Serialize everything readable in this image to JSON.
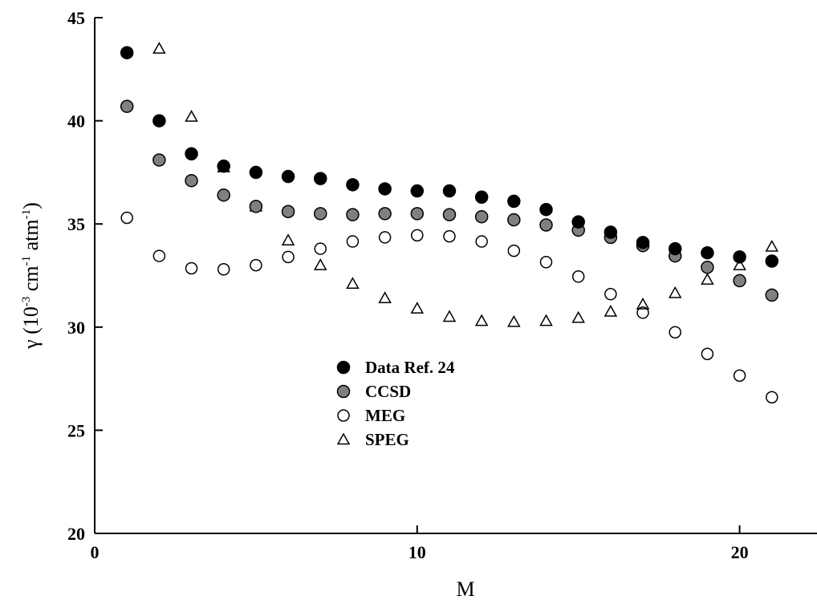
{
  "chart_data": {
    "type": "scatter",
    "title": "",
    "xlabel": "M",
    "ylabel": {
      "base": "γ (10",
      "exp1": "-3",
      "mid1": " cm",
      "exp2": "-1",
      "mid2": " atm",
      "exp3": "-1",
      "end": ")"
    },
    "xlim": [
      0,
      22.4
    ],
    "ylim": [
      20,
      45
    ],
    "xticks": [
      0,
      10,
      20
    ],
    "xtick_labels": [
      "0",
      "10",
      "20"
    ],
    "yticks": [
      20,
      25,
      30,
      35,
      40,
      45
    ],
    "ytick_labels": [
      "20",
      "25",
      "30",
      "35",
      "40",
      "45"
    ],
    "grid": false,
    "legend_position": "center-left",
    "x": [
      1,
      2,
      3,
      4,
      5,
      6,
      7,
      8,
      9,
      10,
      11,
      12,
      13,
      14,
      15,
      16,
      17,
      18,
      19,
      20,
      21
    ],
    "series": [
      {
        "name": "Data Ref. 24",
        "marker": "circle-filled-black",
        "values": [
          43.3,
          40.0,
          38.4,
          37.8,
          37.5,
          37.3,
          37.2,
          36.9,
          36.7,
          36.6,
          36.6,
          36.3,
          36.1,
          35.7,
          35.1,
          34.6,
          34.1,
          33.8,
          33.6,
          33.4,
          33.2
        ]
      },
      {
        "name": "CCSD",
        "marker": "circle-filled-gray",
        "values": [
          40.7,
          38.1,
          37.1,
          36.4,
          35.85,
          35.6,
          35.5,
          35.45,
          35.5,
          35.5,
          35.45,
          35.35,
          35.2,
          34.95,
          34.7,
          34.35,
          33.95,
          33.45,
          32.9,
          32.25,
          31.55
        ]
      },
      {
        "name": "MEG",
        "marker": "circle-open",
        "values": [
          35.3,
          33.45,
          32.85,
          32.8,
          33.0,
          33.4,
          33.8,
          34.15,
          34.35,
          34.45,
          34.4,
          34.15,
          33.7,
          33.15,
          32.45,
          31.6,
          30.7,
          29.75,
          28.7,
          27.65,
          26.6
        ]
      },
      {
        "name": "SPEG",
        "marker": "triangle-open",
        "values": [
          null,
          43.5,
          40.2,
          37.75,
          35.85,
          34.2,
          33.0,
          32.1,
          31.4,
          30.9,
          30.5,
          30.3,
          30.25,
          30.3,
          30.45,
          30.75,
          31.1,
          31.65,
          32.3,
          33.0,
          33.9
        ]
      }
    ]
  }
}
